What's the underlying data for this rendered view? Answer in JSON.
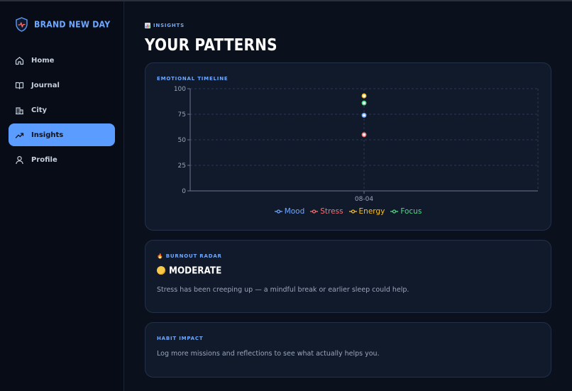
{
  "sidebar": {
    "brand": "BRAND NEW DAY",
    "items": [
      {
        "label": "Home",
        "icon": "home-icon"
      },
      {
        "label": "Journal",
        "icon": "book-icon"
      },
      {
        "label": "City",
        "icon": "building-icon"
      },
      {
        "label": "Insights",
        "icon": "trending-up-icon",
        "active": true
      },
      {
        "label": "Profile",
        "icon": "user-icon"
      }
    ]
  },
  "header": {
    "kicker": "INSIGHTS",
    "title": "YOUR PATTERNS"
  },
  "timeline": {
    "label": "EMOTIONAL TIMELINE"
  },
  "chart_data": {
    "type": "line",
    "x": [
      "08-04"
    ],
    "series": [
      {
        "name": "Mood",
        "values": [
          74
        ],
        "color": "#6ea8ff"
      },
      {
        "name": "Stress",
        "values": [
          55
        ],
        "color": "#f87171"
      },
      {
        "name": "Energy",
        "values": [
          93
        ],
        "color": "#fbbf24"
      },
      {
        "name": "Focus",
        "values": [
          86
        ],
        "color": "#4ade80"
      }
    ],
    "yticks": [
      0,
      25,
      50,
      75,
      100
    ],
    "ylim": [
      0,
      100
    ],
    "grid": true,
    "legend": "bottom"
  },
  "burnout": {
    "label": "BURNOUT RADAR",
    "level": "MODERATE",
    "message": "Stress has been creeping up — a mindful break or earlier sleep could help."
  },
  "habit": {
    "label": "HABIT IMPACT",
    "message": "Log more missions and reflections to see what actually helps you."
  }
}
